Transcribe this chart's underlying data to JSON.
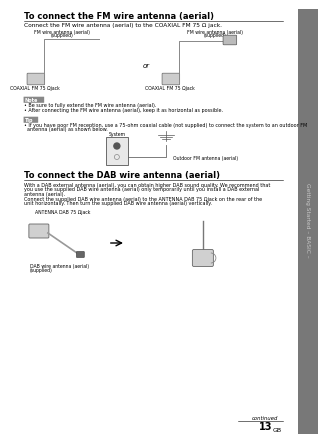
{
  "page_bg": "#f5f5f5",
  "content_bg": "#ffffff",
  "sidebar_bg": "#787878",
  "sidebar_text": "Getting Started – BASIC –",
  "sidebar_text_color": "#c8c8c8",
  "title1": "To connect the FM wire antenna (aerial)",
  "body1": "Connect the FM wire antenna (aerial) to the COAXIAL FM 75 Ω jack.",
  "note_label": "Note",
  "note_text1": "• Be sure to fully extend the FM wire antenna (aerial).",
  "note_text2": "• After connecting the FM wire antenna (aerial), keep it as horizontal as possible.",
  "tip_label": "Tip",
  "tip_line1": "• If you have poor FM reception, use a 75-ohm coaxial cable (not supplied) to connect the system to an outdoor FM",
  "tip_line2": "  antenna (aerial) as shown below.",
  "diagram_label1a": "FM wire antenna (aerial)",
  "diagram_label1b": "(supplied)",
  "diagram_label1c": "COAXIAL FM 75 Ωjack",
  "diagram_label2a": "FM wire antenna (aerial)",
  "diagram_label2b": "(supplied)",
  "diagram_label2c": "COAXIAL FM 75 Ωjack",
  "or_text": "or",
  "system_label": "System",
  "outdoor_label": "Outdoor FM antenna (aerial)",
  "title2": "To connect the DAB wire antenna (aerial)",
  "body2a_l1": "With a DAB external antenna (aerial), you can obtain higher DAB sound quality. We recommend that",
  "body2a_l2": "you use the supplied DAB wire antenna (aerial) only temporarily until you install a DAB external",
  "body2a_l3": "antenna (aerial).",
  "body2b_l1": "Connect the supplied DAB wire antenna (aerial) to the ANTENNA DAB 75 Ωjack on the rear of the",
  "body2b_l2": "unit horizontally. Then turn the supplied DAB wire antenna (aerial) vertically.",
  "dab_antenna_label": "ANTENNA DAB 75 Ωjack",
  "dab_wire_label_l1": "DAB wire antenna (aerial)",
  "dab_wire_label_l2": "(supplied)",
  "continued_text": "continued",
  "page_num": "13",
  "page_suffix": "GB"
}
